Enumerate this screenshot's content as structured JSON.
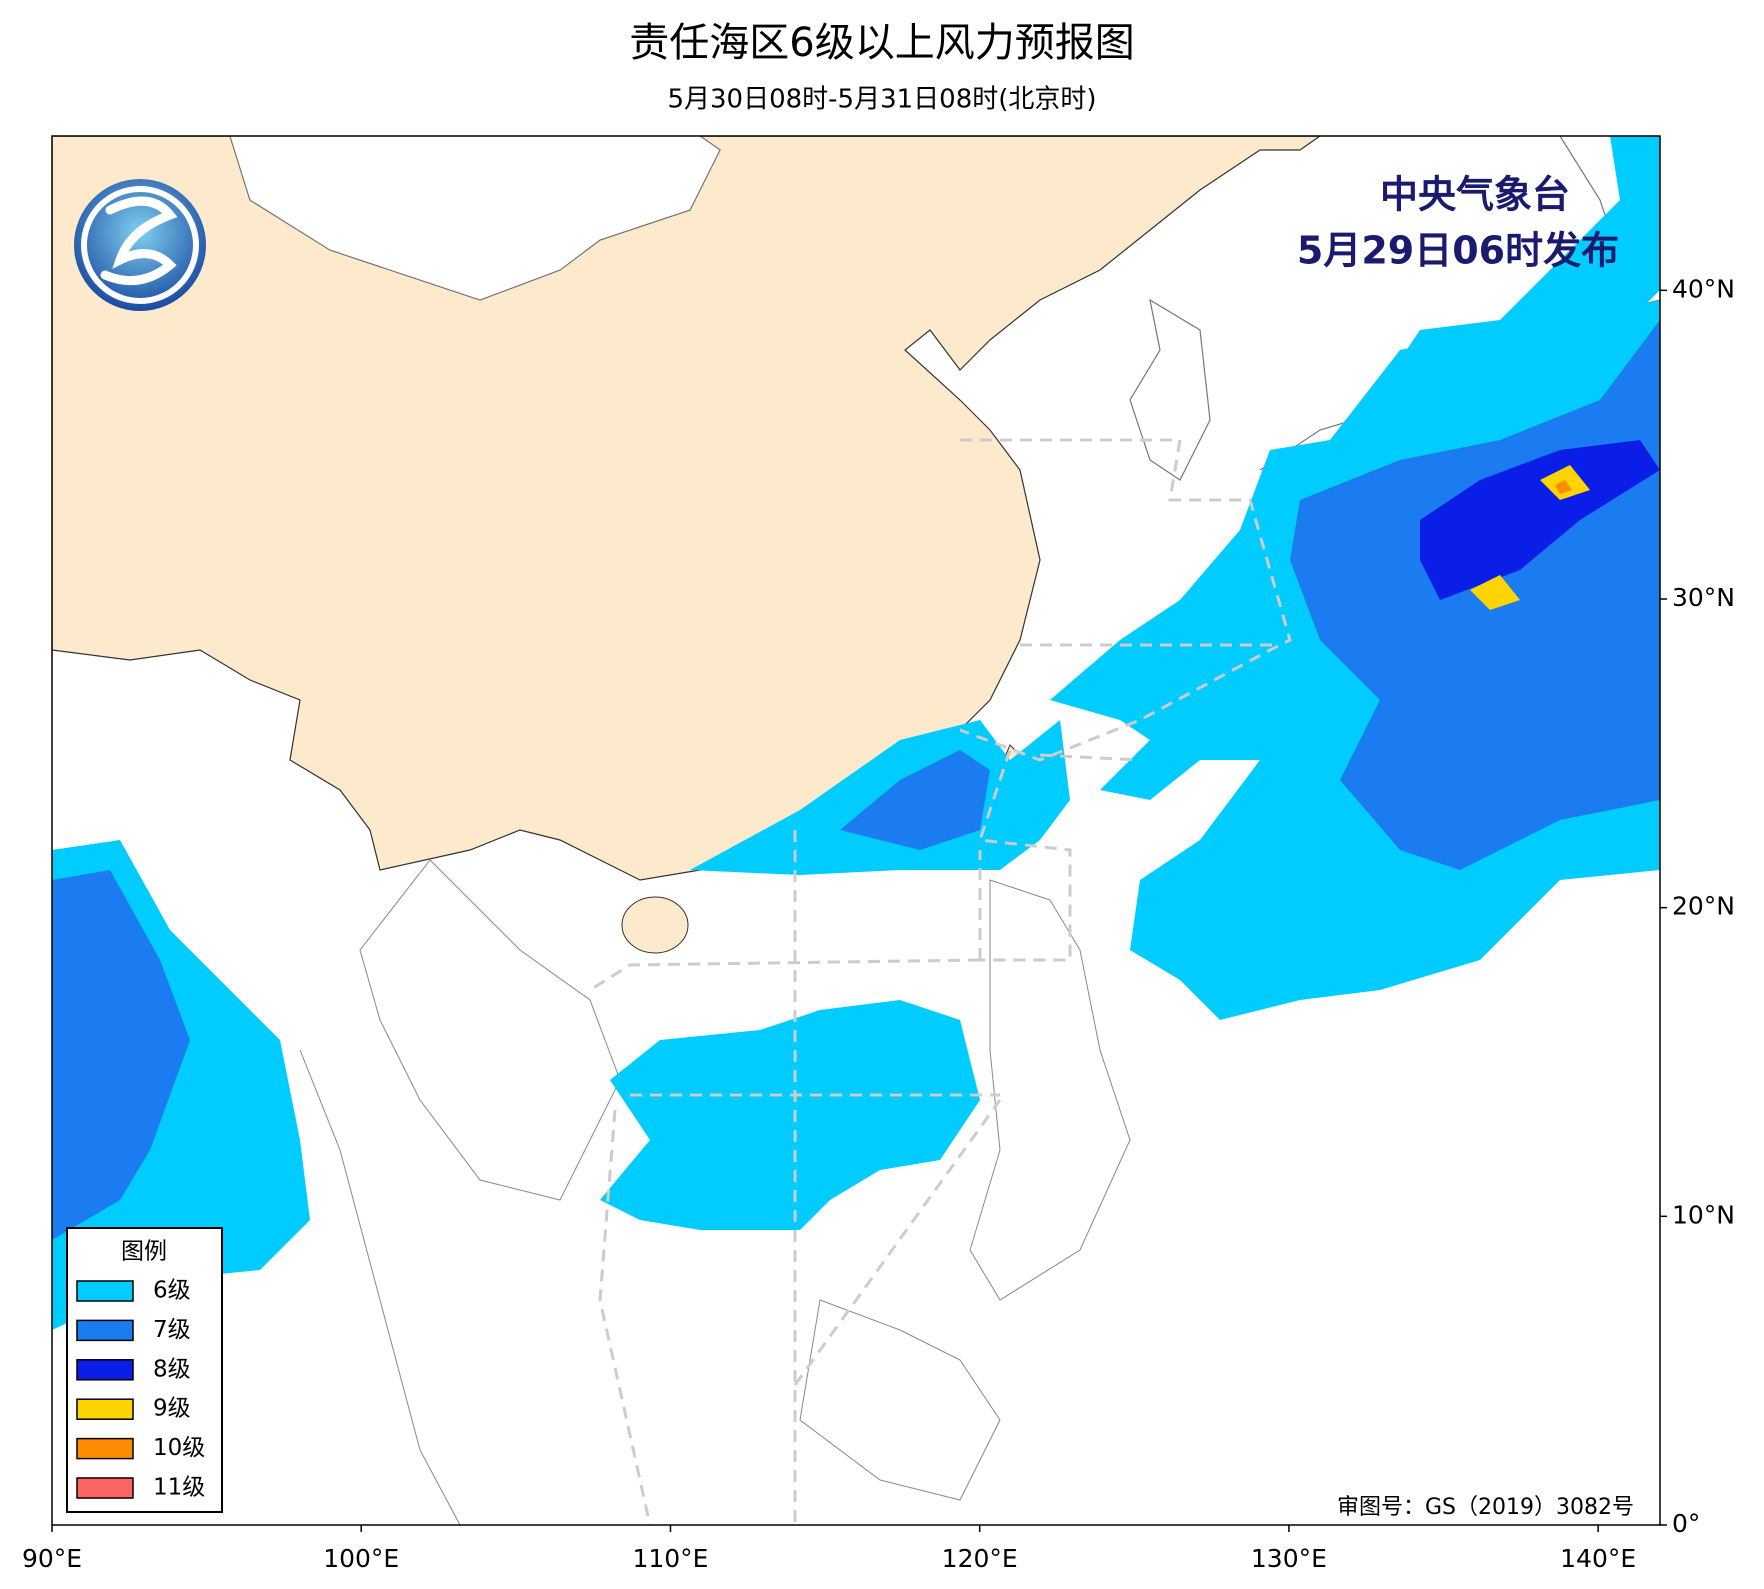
{
  "title": "责任海区6级以上风力预报图",
  "subtitle": "5月30日08时-5月31日08时(北京时)",
  "issuer": "中央气象台",
  "issue_time": "5月29日06时发布",
  "review_no": "审图号：GS（2019）3082号",
  "legend": {
    "title": "图例",
    "items": [
      {
        "label": "6级",
        "color": "#00ccff"
      },
      {
        "label": "7级",
        "color": "#1a7cf0"
      },
      {
        "label": "8级",
        "color": "#0a1ee8"
      },
      {
        "label": "9级",
        "color": "#ffd400"
      },
      {
        "label": "10级",
        "color": "#ff8c00"
      },
      {
        "label": "11级",
        "color": "#ff6464"
      }
    ]
  },
  "axes": {
    "xlim": [
      90,
      142
    ],
    "ylim": [
      0,
      45
    ],
    "xticks": [
      {
        "value": 90,
        "label": "90°E"
      },
      {
        "value": 100,
        "label": "100°E"
      },
      {
        "value": 110,
        "label": "110°E"
      },
      {
        "value": 120,
        "label": "120°E"
      },
      {
        "value": 130,
        "label": "130°E"
      },
      {
        "value": 140,
        "label": "140°E"
      }
    ],
    "yticks": [
      {
        "value": 0,
        "label": "0°"
      },
      {
        "value": 10,
        "label": "10°N"
      },
      {
        "value": 20,
        "label": "20°N"
      },
      {
        "value": 30,
        "label": "30°N"
      },
      {
        "value": 40,
        "label": "40°N"
      }
    ]
  }
}
